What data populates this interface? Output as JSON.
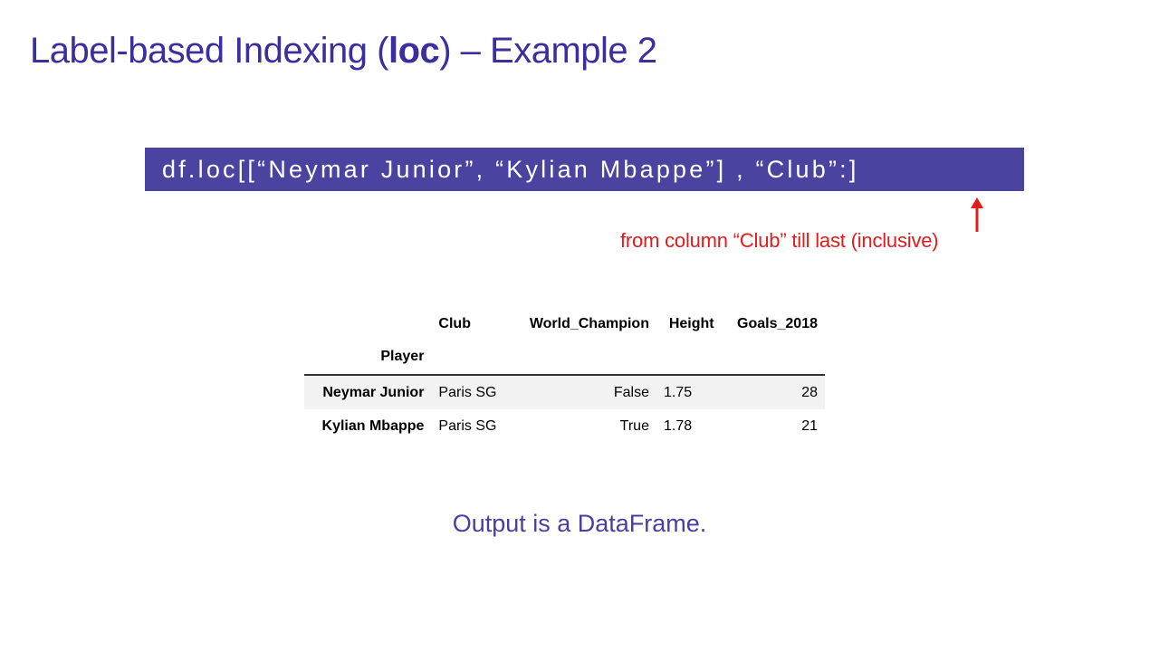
{
  "slide": {
    "title_prefix": "Label-based Indexing (",
    "title_bold": "loc",
    "title_suffix": ") – Example 2",
    "code": "df.loc[[“Neymar Junior”, “Kylian Mbappe”] , “Club”:]",
    "annotation": "from column “Club” till last (inclusive)",
    "output_note": "Output is a DataFrame."
  },
  "dataframe": {
    "index_name": "Player",
    "columns": [
      "Club",
      "World_Champion",
      "Height",
      "Goals_2018"
    ],
    "rows": [
      {
        "index": "Neymar Junior",
        "values": [
          "Paris SG",
          "False",
          "1.75",
          "28"
        ]
      },
      {
        "index": "Kylian Mbappe",
        "values": [
          "Paris SG",
          "True",
          "1.78",
          "21"
        ]
      }
    ]
  },
  "colors": {
    "title": "#3b2f9e",
    "code_background": "#4a43a0",
    "annotation": "#e31b1b",
    "note": "#4a3fa0"
  },
  "icons": {
    "arrow": "up-arrow"
  }
}
